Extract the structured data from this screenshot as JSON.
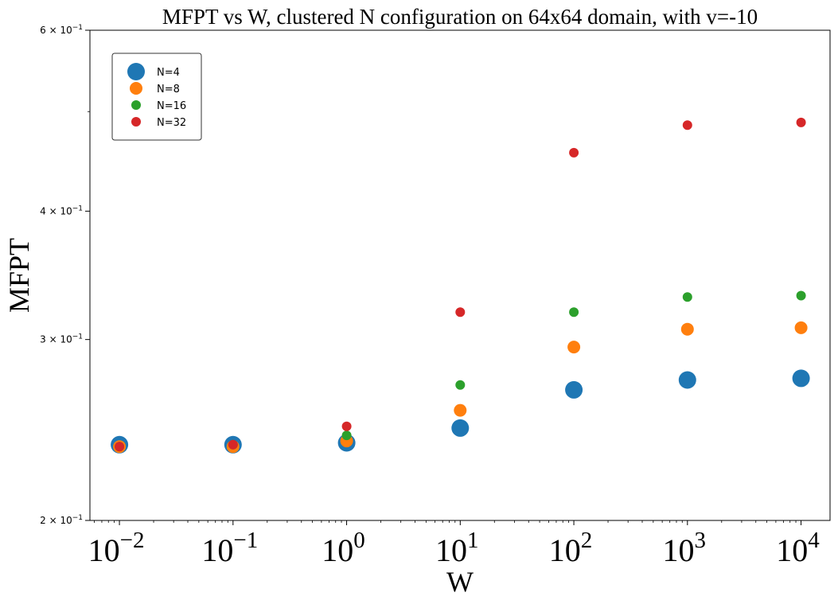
{
  "chart_data": {
    "type": "scatter",
    "title": "MFPT vs W, clustered N configuration on 64x64 domain, with v=-10",
    "xlabel": "W",
    "ylabel": "MFPT",
    "xscale": "log",
    "yscale": "log",
    "xlim": [
      0.0055,
      18000
    ],
    "ylim": [
      0.2,
      0.6
    ],
    "xtick_values": [
      0.01,
      0.1,
      1,
      10,
      100,
      1000,
      10000
    ],
    "xtick_labels": [
      {
        "base": "10",
        "exp": "−2"
      },
      {
        "base": "10",
        "exp": "−1"
      },
      {
        "base": "10",
        "exp": "0"
      },
      {
        "base": "10",
        "exp": "1"
      },
      {
        "base": "10",
        "exp": "2"
      },
      {
        "base": "10",
        "exp": "3"
      },
      {
        "base": "10",
        "exp": "4"
      }
    ],
    "ytick_values": [
      0.2,
      0.3,
      0.4,
      0.6
    ],
    "ytick_labels": [
      {
        "base": "2 × 10",
        "exp": "−1"
      },
      {
        "base": "3 × 10",
        "exp": "−1"
      },
      {
        "base": "4 × 10",
        "exp": "−1"
      },
      {
        "base": "6 × 10",
        "exp": "−1"
      }
    ],
    "legend_position": "top-left",
    "grid": false,
    "x": [
      0.01,
      0.1,
      1,
      10,
      100,
      1000,
      10000
    ],
    "series": [
      {
        "name": "N=4",
        "color": "#1f77b4",
        "marker_size": "large",
        "values": [
          0.237,
          0.237,
          0.238,
          0.246,
          0.268,
          0.274,
          0.275
        ]
      },
      {
        "name": "N=8",
        "color": "#ff7f0e",
        "marker_size": "medium",
        "values": [
          0.236,
          0.236,
          0.239,
          0.256,
          0.295,
          0.307,
          0.308
        ]
      },
      {
        "name": "N=16",
        "color": "#2ca02c",
        "marker_size": "small",
        "values": [
          0.236,
          0.237,
          0.242,
          0.271,
          0.319,
          0.33,
          0.331
        ]
      },
      {
        "name": "N=32",
        "color": "#d62728",
        "marker_size": "small",
        "values": [
          0.236,
          0.237,
          0.247,
          0.319,
          0.456,
          0.485,
          0.488
        ]
      }
    ]
  }
}
